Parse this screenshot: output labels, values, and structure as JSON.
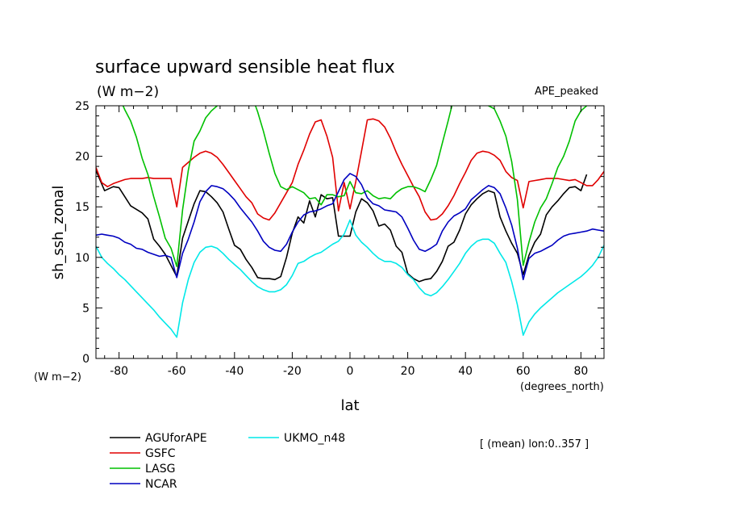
{
  "chart_data": {
    "type": "line",
    "title": "surface upward sensible heat flux",
    "title_units": "(W m−2)",
    "run_label": "APE_peaked",
    "ylabel": "sh_ssh_zonal",
    "xlabel": "lat",
    "yunits": "(W m−2)",
    "xunits": "(degrees_north)",
    "note": "[ (mean) lon:0..357 ]",
    "xlim": [
      -88,
      88
    ],
    "ylim": [
      0,
      25
    ],
    "xticks": [
      -80,
      -60,
      -40,
      -20,
      0,
      20,
      40,
      60,
      80
    ],
    "yticks": [
      0,
      5,
      10,
      15,
      20,
      25
    ],
    "grid": false,
    "legend_position": "below",
    "series": [
      {
        "name": "AGUforAPE",
        "color": "#000000",
        "x": [
          -88,
          -85,
          -82,
          -80,
          -76,
          -72,
          -70,
          -68,
          -66,
          -64,
          -60,
          -58,
          -56,
          -54,
          -52,
          -50,
          -48,
          -46,
          -44,
          -42,
          -40,
          -38,
          -36,
          -34,
          -32,
          -30,
          -28,
          -26,
          -24,
          -22,
          -20,
          -18,
          -16,
          -14,
          -12,
          -10,
          -8,
          -6,
          -4,
          -2,
          0,
          2,
          4,
          6,
          8,
          10,
          12,
          14,
          16,
          18,
          20,
          22,
          24,
          26,
          28,
          30,
          32,
          34,
          36,
          38,
          40,
          42,
          44,
          46,
          48,
          50,
          52,
          54,
          56,
          58,
          60,
          62,
          64,
          66,
          68,
          70,
          72,
          74,
          76,
          78,
          80,
          82,
          84,
          86,
          88
        ],
        "y": [
          18.6,
          16.6,
          17,
          16.9,
          15.1,
          14.4,
          13.8,
          11.8,
          11.1,
          10.3,
          8.1,
          11.9,
          13.6,
          15.3,
          16.6,
          16.5,
          16,
          15.4,
          14.5,
          12.8,
          11.2,
          10.8,
          9.8,
          9,
          8,
          7.9,
          7.9,
          7.8,
          8.1,
          10,
          12.4,
          14,
          13.4,
          15.6,
          14,
          16.2,
          15.8,
          15.9,
          12.1,
          12.1,
          12.1,
          14.5,
          15.8,
          15.4,
          14.6,
          13.1,
          13.3,
          12.7,
          11.1,
          10.5,
          8.4,
          7.9,
          7.6,
          7.8,
          7.9,
          8.6,
          9.6,
          11.1,
          11.5,
          12.7,
          14.3,
          15.2,
          15.8,
          16.3,
          16.6,
          16.4,
          14,
          12.6,
          11.4,
          10.4,
          8.3,
          10.2,
          11.5,
          12.3,
          14.2,
          15,
          15.6,
          16.3,
          16.9,
          17,
          16.6,
          18.2,
          null,
          null,
          null
        ]
      },
      {
        "name": "GSFC",
        "color": "#e00000",
        "x": [
          -88,
          -86,
          -84,
          -82,
          -80,
          -78,
          -76,
          -74,
          -72,
          -70,
          -68,
          -66,
          -64,
          -62,
          -60,
          -58,
          -56,
          -54,
          -52,
          -50,
          -48,
          -46,
          -44,
          -42,
          -40,
          -38,
          -36,
          -34,
          -32,
          -30,
          -28,
          -26,
          -24,
          -22,
          -20,
          -18,
          -16,
          -14,
          -12,
          -10,
          -8,
          -6,
          -4,
          -2,
          0,
          2,
          4,
          6,
          8,
          10,
          12,
          14,
          16,
          18,
          20,
          22,
          24,
          26,
          28,
          30,
          32,
          34,
          36,
          38,
          40,
          42,
          44,
          46,
          48,
          50,
          52,
          54,
          56,
          58,
          60,
          62,
          64,
          66,
          68,
          70,
          72,
          74,
          76,
          78,
          80,
          82,
          84,
          86,
          88
        ],
        "y": [
          18.9,
          17.4,
          17,
          17.3,
          17.5,
          17.7,
          17.8,
          17.8,
          17.8,
          17.9,
          17.8,
          17.8,
          17.8,
          17.8,
          15,
          18.9,
          19.4,
          19.9,
          20.3,
          20.5,
          20.3,
          19.9,
          19.2,
          18.4,
          17.6,
          16.8,
          16,
          15.4,
          14.3,
          13.9,
          13.7,
          14.4,
          15.4,
          16.4,
          17.4,
          19.2,
          20.6,
          22.2,
          23.4,
          23.6,
          22,
          19.9,
          14.6,
          17.4,
          14.8,
          17.5,
          20.5,
          23.6,
          23.7,
          23.5,
          22.9,
          21.8,
          20.4,
          19.2,
          18.1,
          17,
          16,
          14.5,
          13.7,
          13.8,
          14.3,
          15.1,
          16.1,
          17.3,
          18.4,
          19.6,
          20.3,
          20.5,
          20.4,
          20.1,
          19.6,
          18.5,
          17.9,
          17.6,
          14.9,
          17.5,
          17.6,
          17.7,
          17.8,
          17.8,
          17.8,
          17.7,
          17.6,
          17.7,
          17.4,
          17.1,
          17.1,
          17.7,
          18.5
        ]
      },
      {
        "name": "LASG",
        "color": "#00c000",
        "x": [
          -88,
          -86,
          -84,
          -82,
          -80,
          -78,
          -76,
          -74,
          -72,
          -70,
          -68,
          -66,
          -64,
          -62,
          -60,
          -58,
          -56,
          -54,
          -52,
          -50,
          -48,
          -46,
          -44,
          -42,
          -40,
          -38,
          -36,
          -34,
          -32,
          -30,
          -28,
          -26,
          -24,
          -22,
          -20,
          -18,
          -16,
          -14,
          -12,
          -10,
          -8,
          -6,
          -4,
          -2,
          0,
          2,
          4,
          6,
          8,
          10,
          12,
          14,
          16,
          18,
          20,
          22,
          24,
          26,
          28,
          30,
          32,
          34,
          36,
          38,
          40,
          42,
          44,
          46,
          48,
          50,
          52,
          54,
          56,
          58,
          60,
          62,
          64,
          66,
          68,
          70,
          72,
          74,
          76,
          78,
          80,
          82,
          84,
          86,
          88
        ],
        "y": [
          27.3,
          27.4,
          27.8,
          26.9,
          25.9,
          24.6,
          23.5,
          21.9,
          19.8,
          18.2,
          16,
          14,
          11.9,
          10.9,
          9.1,
          14.7,
          18.6,
          21.5,
          22.5,
          23.8,
          24.5,
          25,
          25.6,
          26,
          26.3,
          26.5,
          26.5,
          26,
          24.4,
          22.5,
          20.3,
          18.3,
          17,
          16.7,
          17,
          16.7,
          16.4,
          15.8,
          15.9,
          15.2,
          16.2,
          16.2,
          16,
          16.1,
          17.5,
          16.4,
          16.3,
          16.6,
          16.1,
          15.8,
          15.9,
          15.8,
          16.4,
          16.8,
          17,
          17,
          16.8,
          16.5,
          17.7,
          19.1,
          21.3,
          23.5,
          25.8,
          26.6,
          26.1,
          25.6,
          25.4,
          25.2,
          25,
          24.7,
          23.5,
          22,
          19.5,
          15.7,
          9.2,
          11.5,
          13.5,
          14.9,
          15.8,
          17.3,
          18.9,
          20,
          21.5,
          23.5,
          24.5,
          25,
          26.4,
          26.1,
          25.8
        ]
      },
      {
        "name": "NCAR",
        "color": "#0000c0",
        "x": [
          -88,
          -86,
          -84,
          -82,
          -80,
          -78,
          -76,
          -74,
          -72,
          -70,
          -68,
          -66,
          -64,
          -62,
          -60,
          -58,
          -56,
          -54,
          -52,
          -50,
          -48,
          -46,
          -44,
          -42,
          -40,
          -38,
          -36,
          -34,
          -32,
          -30,
          -28,
          -26,
          -24,
          -22,
          -20,
          -18,
          -16,
          -14,
          -12,
          -10,
          -8,
          -6,
          -4,
          -2,
          0,
          2,
          4,
          6,
          8,
          10,
          12,
          14,
          16,
          18,
          20,
          22,
          24,
          26,
          28,
          30,
          32,
          34,
          36,
          38,
          40,
          42,
          44,
          46,
          48,
          50,
          52,
          54,
          56,
          58,
          60,
          62,
          64,
          66,
          68,
          70,
          72,
          74,
          76,
          78,
          80,
          82,
          84,
          86,
          88
        ],
        "y": [
          12.2,
          12.3,
          12.2,
          12.1,
          11.9,
          11.5,
          11.3,
          10.9,
          10.8,
          10.5,
          10.3,
          10.1,
          10.2,
          10,
          8,
          10.4,
          11.8,
          13.5,
          15.5,
          16.5,
          17.1,
          17,
          16.8,
          16.3,
          15.7,
          14.9,
          14.2,
          13.5,
          12.6,
          11.6,
          11,
          10.7,
          10.6,
          11.3,
          12.5,
          13.5,
          14.2,
          14.5,
          14.6,
          14.8,
          15.1,
          15.3,
          16.5,
          17.7,
          18.3,
          18,
          17.2,
          15.9,
          15.3,
          15.1,
          14.7,
          14.6,
          14.5,
          14,
          12.9,
          11.7,
          10.8,
          10.6,
          10.9,
          11.3,
          12.6,
          13.5,
          14.1,
          14.4,
          14.8,
          15.7,
          16.2,
          16.7,
          17.1,
          16.9,
          16.3,
          14.9,
          13.2,
          10.9,
          7.8,
          9.9,
          10.4,
          10.6,
          10.9,
          11.2,
          11.7,
          12.1,
          12.3,
          12.4,
          12.5,
          12.6,
          12.8,
          12.7,
          12.6
        ]
      },
      {
        "name": "UKMO_n48",
        "color": "#00e8e8",
        "x": [
          -88,
          -86,
          -84,
          -82,
          -80,
          -78,
          -76,
          -74,
          -72,
          -70,
          -68,
          -66,
          -64,
          -62,
          -60,
          -58,
          -56,
          -54,
          -52,
          -50,
          -48,
          -46,
          -44,
          -42,
          -40,
          -38,
          -36,
          -34,
          -32,
          -30,
          -28,
          -26,
          -24,
          -22,
          -20,
          -18,
          -16,
          -14,
          -12,
          -10,
          -8,
          -6,
          -4,
          -2,
          0,
          2,
          4,
          6,
          8,
          10,
          12,
          14,
          16,
          18,
          20,
          22,
          24,
          26,
          28,
          30,
          32,
          34,
          36,
          38,
          40,
          42,
          44,
          46,
          48,
          50,
          52,
          54,
          56,
          58,
          60,
          62,
          64,
          66,
          68,
          70,
          72,
          74,
          76,
          78,
          80,
          82,
          84,
          86,
          88
        ],
        "y": [
          11.1,
          10,
          9.4,
          8.9,
          8.3,
          7.8,
          7.2,
          6.6,
          6,
          5.4,
          4.8,
          4.1,
          3.5,
          2.9,
          2.1,
          5.5,
          7.8,
          9.5,
          10.5,
          11,
          11.1,
          10.9,
          10.4,
          9.8,
          9.3,
          8.8,
          8.2,
          7.6,
          7.1,
          6.8,
          6.6,
          6.6,
          6.8,
          7.3,
          8.2,
          9.4,
          9.6,
          10,
          10.3,
          10.5,
          10.9,
          11.3,
          11.6,
          12.3,
          13.7,
          12.2,
          11.5,
          11,
          10.4,
          9.9,
          9.6,
          9.6,
          9.4,
          9,
          8.3,
          7.8,
          7,
          6.4,
          6.2,
          6.5,
          7.1,
          7.8,
          8.6,
          9.4,
          10.4,
          11.1,
          11.6,
          11.8,
          11.8,
          11.4,
          10.4,
          9.5,
          7.6,
          5.3,
          2.3,
          3.6,
          4.4,
          5,
          5.5,
          6,
          6.5,
          6.9,
          7.3,
          7.7,
          8.1,
          8.6,
          9.2,
          10,
          11.2
        ]
      }
    ]
  }
}
